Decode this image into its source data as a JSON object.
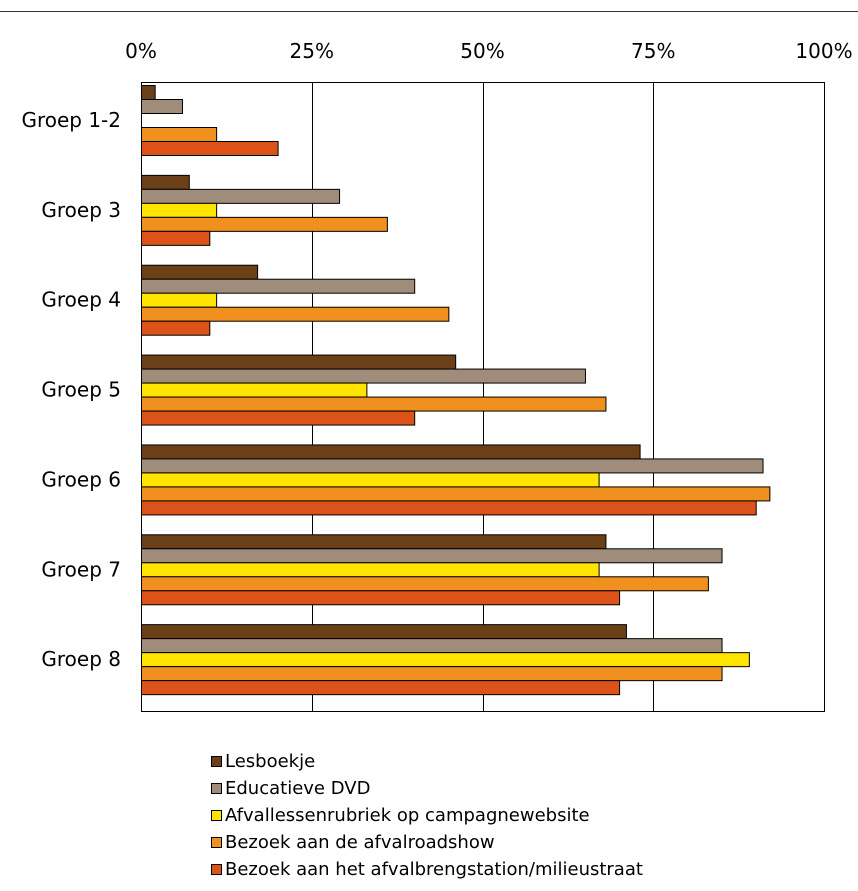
{
  "chart_data": {
    "type": "bar",
    "orientation": "horizontal",
    "title": "",
    "xlabel": "",
    "ylabel": "",
    "xlim": [
      0,
      100
    ],
    "x_ticks": [
      "0%",
      "25%",
      "50%",
      "75%",
      "100%"
    ],
    "x_axis_position": "top",
    "grid": true,
    "legend_position": "bottom",
    "categories": [
      "Groep 1-2",
      "Groep 3",
      "Groep 4",
      "Groep 5",
      "Groep 6",
      "Groep 7",
      "Groep 8"
    ],
    "series": [
      {
        "name": "Lesboekje",
        "color": "#6b3f17",
        "values": [
          2,
          7,
          17,
          46,
          73,
          68,
          71
        ]
      },
      {
        "name": "Educatieve DVD",
        "color": "#a08c7a",
        "values": [
          6,
          29,
          40,
          65,
          91,
          85,
          85
        ]
      },
      {
        "name": "Afvallessenrubriek op campagnewebsite",
        "color": "#ffe400",
        "values": [
          0,
          11,
          11,
          33,
          67,
          67,
          89
        ]
      },
      {
        "name": "Bezoek aan de afvalroadshow",
        "color": "#f0901e",
        "values": [
          11,
          36,
          45,
          68,
          92,
          83,
          85
        ]
      },
      {
        "name": "Bezoek aan het afvalbrengstation/milieustraat",
        "color": "#db5318",
        "values": [
          20,
          10,
          10,
          40,
          90,
          70,
          70
        ]
      }
    ]
  }
}
